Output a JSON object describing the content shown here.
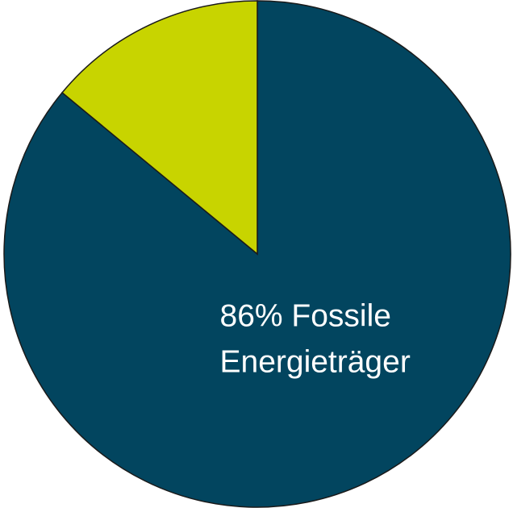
{
  "chart_data": {
    "type": "pie",
    "start_angle_deg": 0,
    "direction": "clockwise",
    "series": [
      {
        "values": [
          86,
          14
        ],
        "colors": [
          "#02455f",
          "#c8d400"
        ],
        "slice_labels": [
          [
            "86% Fossile",
            "Energieträger"
          ],
          []
        ]
      }
    ],
    "legend": "none",
    "title": ""
  }
}
